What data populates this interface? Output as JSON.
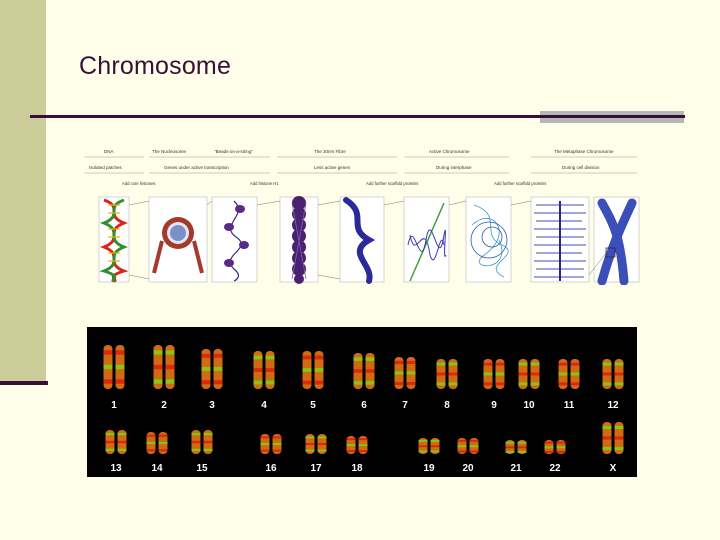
{
  "slide": {
    "title": "Chromosome",
    "background": "#fefee9",
    "accent": "#3a0e3a",
    "side_band_color": "#cccc99"
  },
  "diagram": {
    "panels": [
      {
        "header": "DNA",
        "sub": "Isolated patches"
      },
      {
        "header": "The Nucleosome",
        "sub": "Genes under active transcription"
      },
      {
        "header": "\"Beads-on-a-string\"",
        "sub": ""
      },
      {
        "header": "The 30nm Fibre",
        "sub": "Less active genes"
      },
      {
        "header": "Active Chromosome",
        "sub": "During interphase"
      },
      {
        "header": "The Metaphase Chromosome",
        "sub": "During cell division"
      }
    ],
    "steps": [
      "Add core histones",
      "Add histone H1",
      "Add further scaffold proteins",
      "Add further scaffold proteins"
    ]
  },
  "karyotype": {
    "row1_labels": [
      "1",
      "2",
      "3",
      "4",
      "5",
      "6",
      "7",
      "8",
      "9",
      "10",
      "11",
      "12"
    ],
    "row2_labels": [
      "13",
      "14",
      "15",
      "16",
      "17",
      "18",
      "19",
      "20",
      "21",
      "22",
      "X"
    ],
    "chromosome_colors": {
      "body": "#d06a14",
      "red_band": "#d81f10",
      "green_band": "#7ad416",
      "label": "#ffffff"
    }
  }
}
